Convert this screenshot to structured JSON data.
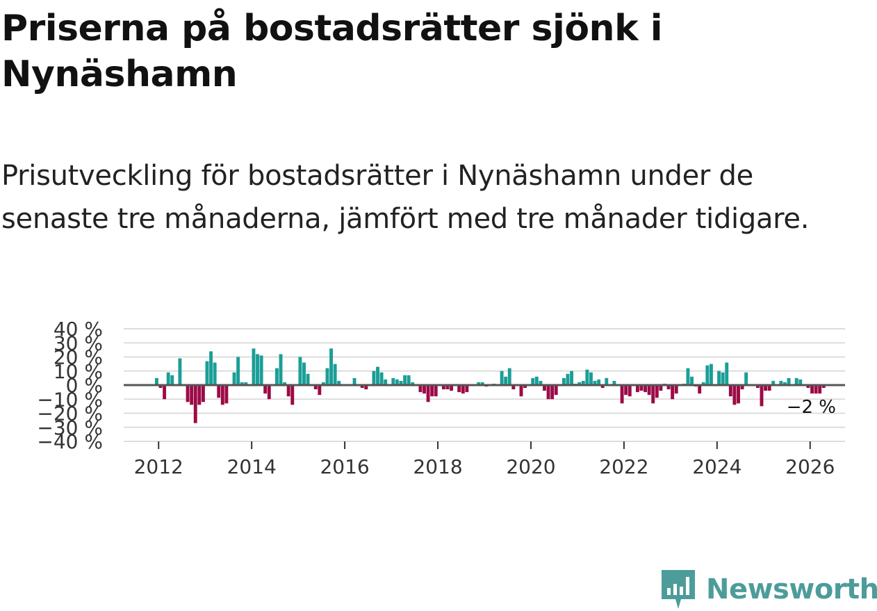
{
  "title": "Priserna på bostadsrätter sjönk i Nynäshamn",
  "subtitle": "Prisutveckling för bostadsrätter i Nynäshamn under de senaste tre månaderna, jämfört med tre månader tidigare.",
  "brand": "Newsworthy",
  "colors": {
    "positive": "#1a9e97",
    "negative": "#9c0a47",
    "grid": "#dddddd",
    "zero": "#555555",
    "brand": "#4d9c9a"
  },
  "chart_data": {
    "type": "bar",
    "title": "Priserna på bostadsrätter sjönk i Nynäshamn",
    "xlabel": "",
    "ylabel": "",
    "ylim": [
      -40,
      40
    ],
    "yticks": [
      -40,
      -30,
      -20,
      -10,
      0,
      10,
      20,
      30,
      40
    ],
    "ytick_labels": [
      "−40 %",
      "−30 %",
      "−20 %",
      "−10 %",
      "0 %",
      "10 %",
      "20 %",
      "30 %",
      "40 %"
    ],
    "xlim": [
      2011.25,
      2026.75
    ],
    "xticks": [
      2012,
      2014,
      2016,
      2018,
      2020,
      2022,
      2024,
      2026
    ],
    "xtick_labels": [
      "2012",
      "2014",
      "2016",
      "2018",
      "2020",
      "2022",
      "2024",
      "2026"
    ],
    "x_start": 2011.9583,
    "x_step": 0.08333,
    "values": [
      5,
      -2,
      -10,
      9,
      7,
      0,
      19,
      0,
      -12,
      -14,
      -27,
      -14,
      -12,
      17,
      24,
      16,
      -9,
      -14,
      -13,
      0,
      9,
      20,
      2,
      2,
      0,
      26,
      22,
      21,
      -6,
      -10,
      0,
      12,
      22,
      2,
      -8,
      -14,
      0,
      20,
      16,
      8,
      0,
      -3,
      -7,
      2,
      12,
      26,
      15,
      3,
      0,
      0,
      0,
      5,
      0,
      -2,
      -3,
      0,
      10,
      13,
      9,
      4,
      0,
      5,
      4,
      3,
      7,
      7,
      2,
      0,
      -5,
      -6,
      -12,
      -8,
      -8,
      0,
      -3,
      -3,
      -4,
      0,
      -5,
      -6,
      -5,
      0,
      0,
      2,
      2,
      -1,
      0,
      1,
      0,
      10,
      6,
      12,
      -3,
      0,
      -8,
      -2,
      0,
      5,
      6,
      3,
      -4,
      -10,
      -10,
      -7,
      0,
      5,
      8,
      10,
      1,
      2,
      3,
      11,
      9,
      3,
      4,
      -2,
      5,
      0,
      3,
      0,
      -13,
      -7,
      -8,
      0,
      -5,
      -4,
      -5,
      -7,
      -13,
      -9,
      -4,
      1,
      -3,
      -10,
      -6,
      0,
      1,
      12,
      6,
      -1,
      -6,
      2,
      14,
      15,
      0,
      10,
      9,
      16,
      -8,
      -14,
      -13,
      -3,
      9,
      0,
      0,
      -2,
      -15,
      -4,
      -4,
      3,
      0,
      3,
      2,
      5,
      0,
      5,
      4,
      0,
      -2,
      -6,
      -6,
      -6,
      -2
    ],
    "annotation": "−2 %"
  }
}
